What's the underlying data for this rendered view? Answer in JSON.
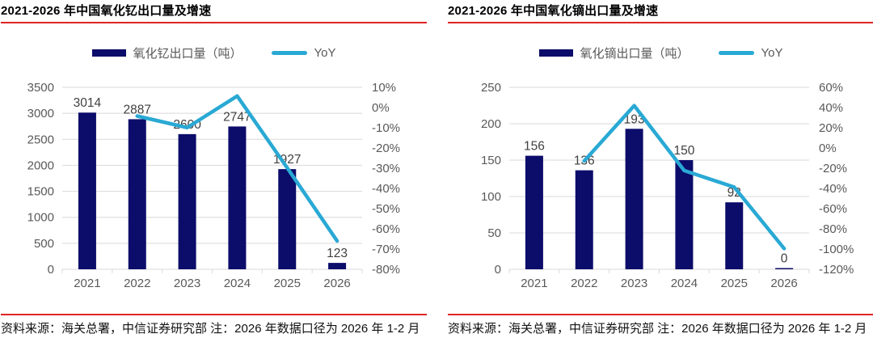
{
  "colors": {
    "bar": "#0c0c6a",
    "line": "#29a9d4",
    "accent_red": "#e02424",
    "grid": "#d9d9d9",
    "axis_text": "#595959",
    "data_label_text": "#404040"
  },
  "chart_data": [
    {
      "type": "bar+line",
      "title": "2021-2026 年中国氧化钇出口量及增速",
      "categories": [
        "2021",
        "2022",
        "2023",
        "2024",
        "2025",
        "2026"
      ],
      "series": [
        {
          "name": "氧化钇出口量（吨）",
          "type": "bar",
          "axis": "left",
          "values": [
            3014,
            2887,
            2600,
            2747,
            1927,
            123
          ],
          "data_labels": [
            "3014",
            "2887",
            "2600",
            "2747",
            "1927",
            "123"
          ]
        },
        {
          "name": "YoY",
          "type": "line",
          "axis": "right",
          "values": [
            null,
            -4.2,
            -9.9,
            5.7,
            -29.8,
            -66
          ]
        }
      ],
      "left_axis": {
        "min": 0,
        "max": 3500,
        "ticks": [
          "3500",
          "3000",
          "2500",
          "2000",
          "1500",
          "1000",
          "500",
          "0"
        ]
      },
      "right_axis": {
        "min": -80,
        "max": 10,
        "ticks": [
          "10%",
          "0%",
          "-10%",
          "-20%",
          "-30%",
          "-40%",
          "-50%",
          "-60%",
          "-70%",
          "-80%"
        ]
      },
      "grid": true,
      "legend_position": "top",
      "source_note": "资料来源：海关总署，中信证券研究部  注：2026 年数据口径为 2026 年 1-2 月"
    },
    {
      "type": "bar+line",
      "title": "2021-2026 年中国氧化镝出口量及增速",
      "categories": [
        "2021",
        "2022",
        "2023",
        "2024",
        "2025",
        "2026"
      ],
      "series": [
        {
          "name": "氧化镝出口量（吨）",
          "type": "bar",
          "axis": "left",
          "values": [
            156,
            136,
            193,
            150,
            92,
            0
          ],
          "data_labels": [
            "156",
            "136",
            "193",
            "150",
            "92",
            "0"
          ]
        },
        {
          "name": "YoY",
          "type": "line",
          "axis": "right",
          "values": [
            null,
            -12.8,
            41.9,
            -22.3,
            -38.7,
            -99.5
          ]
        }
      ],
      "left_axis": {
        "min": 0,
        "max": 250,
        "ticks": [
          "250",
          "200",
          "150",
          "100",
          "50",
          "0"
        ]
      },
      "right_axis": {
        "min": -120,
        "max": 60,
        "ticks": [
          "60%",
          "40%",
          "20%",
          "0%",
          "-20%",
          "-40%",
          "-60%",
          "-80%",
          "-100%",
          "-120%"
        ]
      },
      "grid": true,
      "legend_position": "top",
      "source_note": "资料来源：海关总署，中信证券研究部  注：2026 年数据口径为 2026 年 1-2 月"
    }
  ]
}
